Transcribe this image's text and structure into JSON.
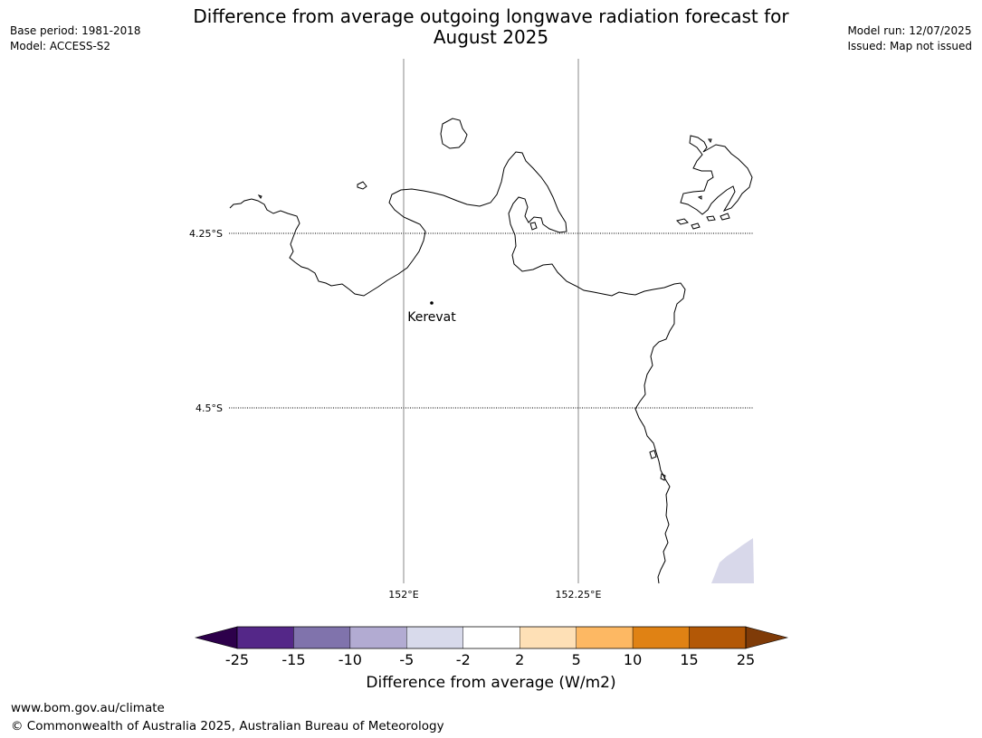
{
  "title": "Difference from average outgoing longwave radiation forecast for August 2025",
  "title_lines": [
    "Difference from average outgoing longwave radiation forecast for",
    "August 2025"
  ],
  "meta_left": {
    "base_period": "Base period: 1981-2018",
    "model": "Model: ACCESS-S2"
  },
  "meta_right": {
    "model_run": "Model run: 12/07/2025",
    "issued": "Issued: Map not issued"
  },
  "map": {
    "lat_labels": [
      "4.25°S",
      "4.5°S"
    ],
    "lon_labels": [
      "152°E",
      "152.25°E"
    ],
    "places": [
      {
        "name": "Kerevat",
        "lon": 152.04,
        "lat": -4.35
      }
    ],
    "coastline_color": "#000000",
    "shade_color": "#d8d8ea"
  },
  "colorbar": {
    "label": "Difference from average (W/m2)",
    "ticks": [
      "-25",
      "-15",
      "-10",
      "-5",
      "-2",
      "2",
      "5",
      "10",
      "15",
      "25"
    ],
    "low_extend_color": "#2d004b",
    "high_extend_color": "#7f3b08",
    "colors": [
      "#542788",
      "#8073ac",
      "#b2abd2",
      "#d8daeb",
      "#ffffff",
      "#fee0b6",
      "#fdb863",
      "#e08214",
      "#b35806"
    ]
  },
  "footer": {
    "url": "www.bom.gov.au/climate",
    "copyright": "© Commonwealth of Australia 2025, Australian Bureau of Meteorology"
  }
}
